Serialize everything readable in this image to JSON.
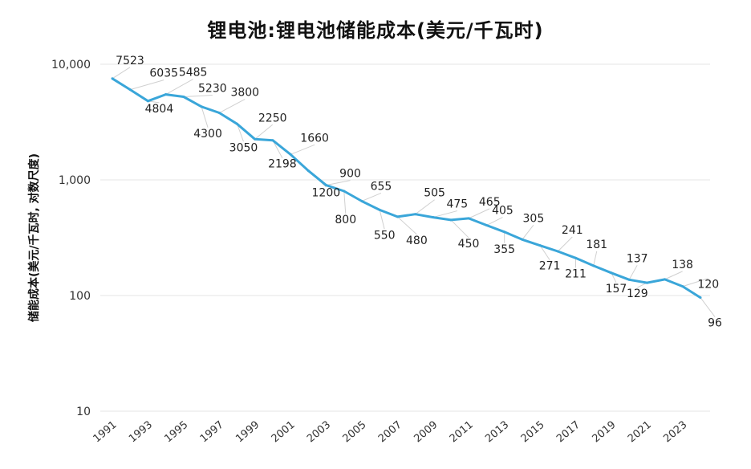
{
  "chart_data": {
    "type": "line",
    "title": "锂电池:锂电池储能成本(美元/千瓦时)",
    "xlabel": "",
    "ylabel": "储能成本(美元/千瓦时, 对数尺度)",
    "yscale": "log",
    "ylim": [
      10,
      10000
    ],
    "y_ticks": [
      "10,000",
      "1,000",
      "100",
      "10"
    ],
    "y_tick_values": [
      10000,
      1000,
      100,
      10
    ],
    "x_ticks": [
      "1991",
      "1993",
      "1995",
      "1997",
      "1999",
      "2001",
      "2003",
      "2005",
      "2007",
      "2009",
      "2011",
      "2013",
      "2015",
      "2017",
      "2019",
      "2021",
      "2023"
    ],
    "x": [
      1991,
      1992,
      1993,
      1994,
      1995,
      1996,
      1997,
      1998,
      1999,
      2000,
      2001,
      2002,
      2003,
      2004,
      2005,
      2006,
      2007,
      2008,
      2009,
      2010,
      2011,
      2012,
      2013,
      2014,
      2015,
      2016,
      2017,
      2018,
      2019,
      2020,
      2021,
      2022,
      2023,
      2024
    ],
    "values": [
      7523,
      6035,
      4804,
      5485,
      5230,
      4300,
      3800,
      3050,
      2250,
      2198,
      1660,
      1200,
      900,
      800,
      655,
      550,
      480,
      505,
      475,
      450,
      465,
      405,
      355,
      305,
      271,
      241,
      211,
      181,
      157,
      137,
      129,
      138,
      120,
      96
    ],
    "labels": [
      "7523",
      "6035",
      "4804",
      "5485",
      "5230",
      "4300",
      "3800",
      "3050",
      "2250",
      "2198",
      "1660",
      "1200",
      "900",
      "800",
      "655",
      "550",
      "480",
      "505",
      "475",
      "450",
      "465",
      "405",
      "355",
      "305",
      "271",
      "241",
      "211",
      "181",
      "157",
      "137",
      "129",
      "138",
      "120",
      "96"
    ],
    "line_color": "#3aa6d9",
    "grid": true
  }
}
